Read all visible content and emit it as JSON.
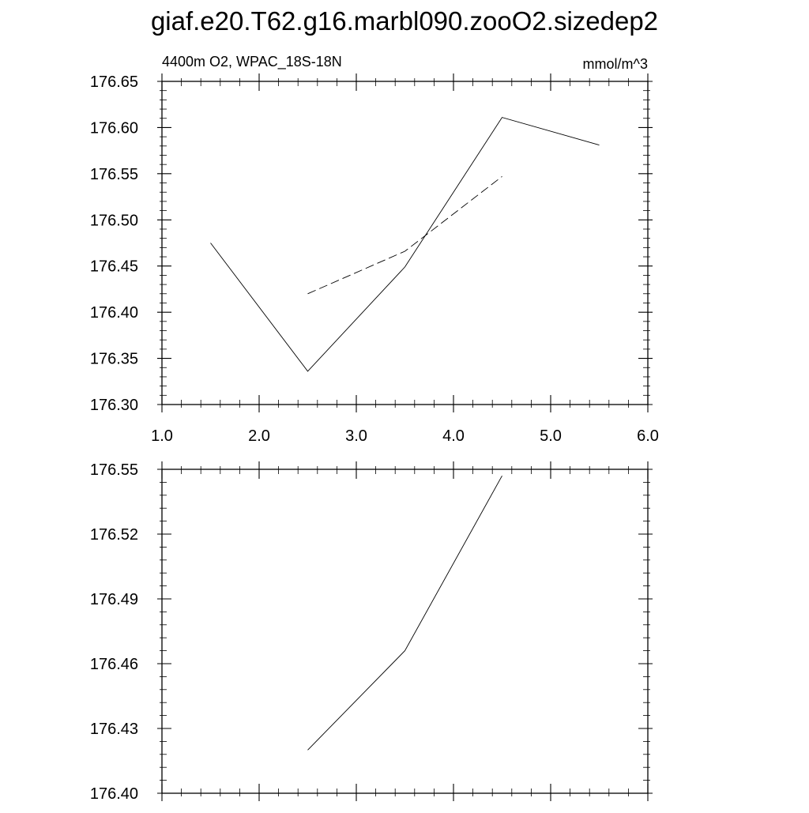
{
  "figure": {
    "title": "giaf.e20.T62.g16.marbl090.zooO2.sizedep2"
  },
  "chart_data": [
    {
      "type": "line",
      "subtitle_left": "4400m O2, WPAC_18S-18N",
      "subtitle_right": "mmol/m^3",
      "xlim": [
        1.0,
        6.0
      ],
      "ylim": [
        176.3,
        176.65
      ],
      "x_ticks": [
        1.0,
        2.0,
        3.0,
        4.0,
        5.0,
        6.0
      ],
      "x_tick_labels": [
        "1.0",
        "2.0",
        "3.0",
        "4.0",
        "5.0",
        "6.0"
      ],
      "y_ticks": [
        176.3,
        176.35,
        176.4,
        176.45,
        176.5,
        176.55,
        176.6,
        176.65
      ],
      "y_tick_labels": [
        "176.30",
        "176.35",
        "176.40",
        "176.45",
        "176.50",
        "176.55",
        "176.60",
        "176.65"
      ],
      "grid": false,
      "series": [
        {
          "style": "solid",
          "x": [
            1.5,
            2.5,
            3.5,
            4.5,
            5.5
          ],
          "y": [
            176.475,
            176.336,
            176.449,
            176.611,
            176.581
          ]
        },
        {
          "style": "dashed",
          "x": [
            2.5,
            3.5,
            4.5
          ],
          "y": [
            176.42,
            176.466,
            176.547
          ]
        }
      ]
    },
    {
      "type": "line",
      "xlim": [
        1.0,
        6.0
      ],
      "ylim": [
        176.4,
        176.55
      ],
      "x_ticks": [
        1.0,
        2.0,
        3.0,
        4.0,
        5.0,
        6.0
      ],
      "x_tick_labels": [],
      "y_ticks": [
        176.4,
        176.43,
        176.46,
        176.49,
        176.52,
        176.55
      ],
      "y_tick_labels": [
        "176.40",
        "176.43",
        "176.46",
        "176.49",
        "176.52",
        "176.55"
      ],
      "grid": false,
      "series": [
        {
          "style": "solid",
          "x": [
            2.5,
            3.5,
            4.5
          ],
          "y": [
            176.42,
            176.466,
            176.547
          ]
        }
      ]
    }
  ]
}
